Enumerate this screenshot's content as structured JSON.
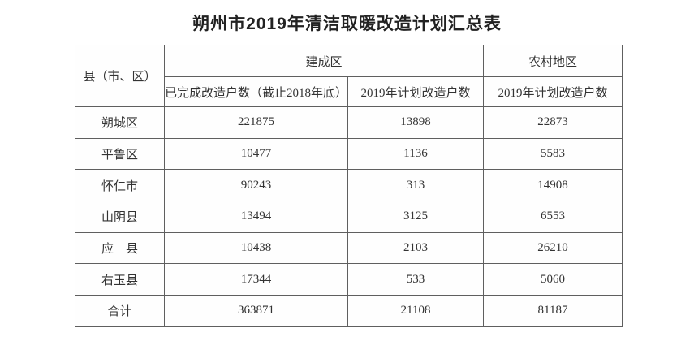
{
  "page": {
    "title": "朔州市2019年清洁取暖改造计划汇总表"
  },
  "table": {
    "header": {
      "county": "县（市、区）",
      "built_up_area": "建成区",
      "rural_area": "农村地区",
      "completed_by_end_2018": "已完成改造户数（截止2018年底）",
      "plan_2019_built": "2019年计划改造户数",
      "plan_2019_rural": "2019年计划改造户数"
    },
    "rows": [
      {
        "county": "朔城区",
        "completed": "221875",
        "plan_built": "13898",
        "plan_rural": "22873"
      },
      {
        "county": "平鲁区",
        "completed": "10477",
        "plan_built": "1136",
        "plan_rural": "5583"
      },
      {
        "county": "怀仁市",
        "completed": "90243",
        "plan_built": "313",
        "plan_rural": "14908"
      },
      {
        "county": "山阴县",
        "completed": "13494",
        "plan_built": "3125",
        "plan_rural": "6553"
      },
      {
        "county": "应　县",
        "completed": "10438",
        "plan_built": "2103",
        "plan_rural": "26210"
      },
      {
        "county": "右玉县",
        "completed": "17344",
        "plan_built": "533",
        "plan_rural": "5060"
      },
      {
        "county": "合计",
        "completed": "363871",
        "plan_built": "21108",
        "plan_rural": "81187"
      }
    ],
    "colors": {
      "border": "#5f5f5f",
      "text": "#333333",
      "background": "#ffffff"
    }
  }
}
